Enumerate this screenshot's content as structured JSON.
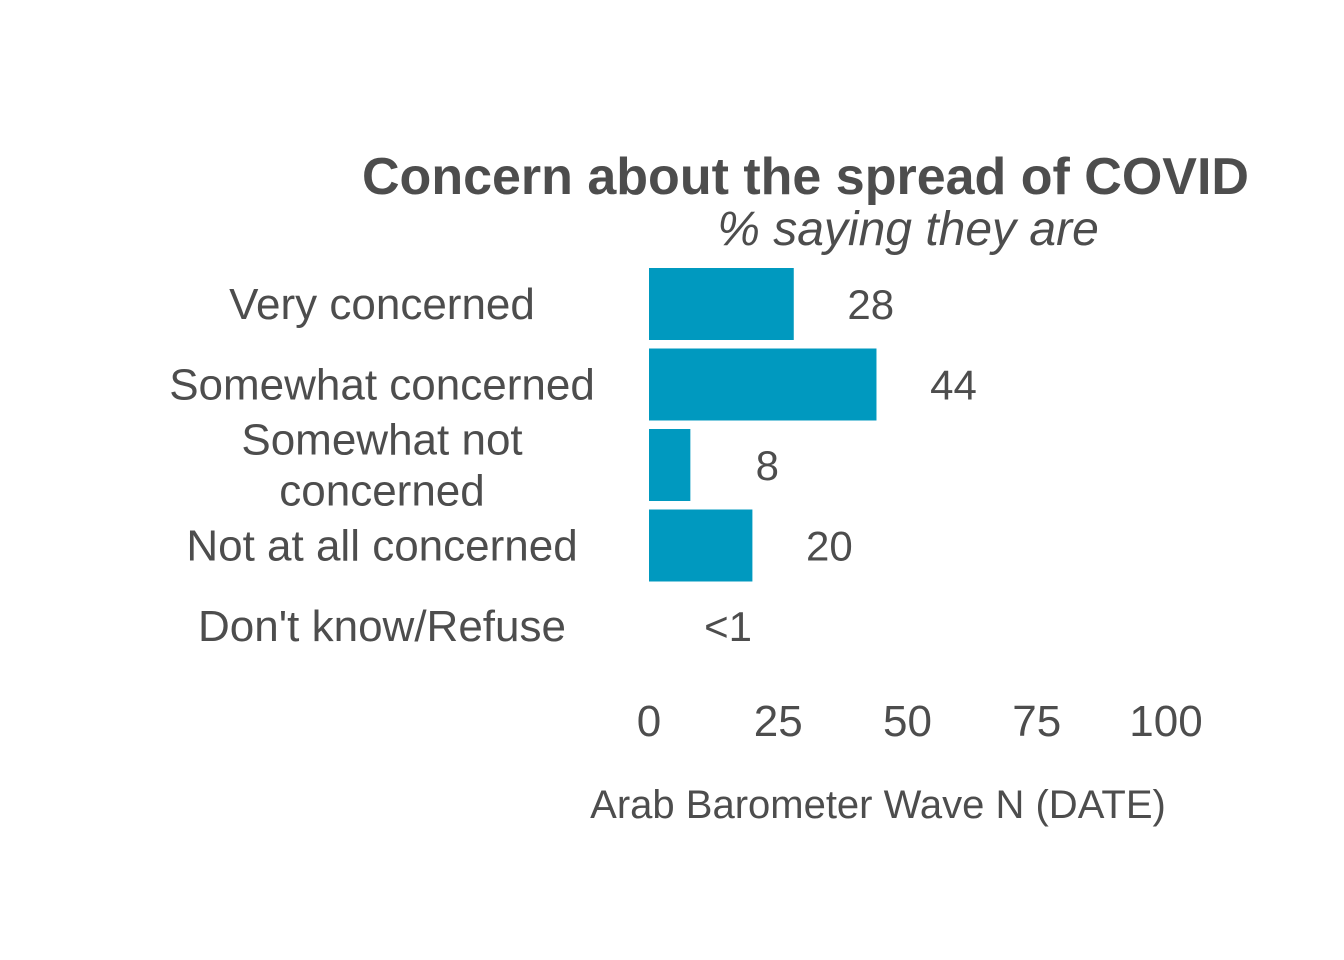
{
  "chart_data": {
    "type": "bar",
    "orientation": "horizontal",
    "title": "Concern about the spread of COVID",
    "subtitle": "% saying they are",
    "caption": "Arab Barometer Wave N (DATE)",
    "categories": [
      [
        "Very concerned"
      ],
      [
        "Somewhat concerned"
      ],
      [
        "Somewhat not",
        "concerned"
      ],
      [
        "Not at all concerned"
      ],
      [
        "Don't know/Refuse"
      ]
    ],
    "values": [
      28,
      44,
      8,
      20,
      0.4
    ],
    "value_labels": [
      "28",
      "44",
      "8",
      "20",
      "<1"
    ],
    "xlim": [
      0,
      100
    ],
    "xticks": [
      "0",
      "25",
      "50",
      "75",
      "100"
    ],
    "xtick_values": [
      0,
      25,
      50,
      75,
      100
    ],
    "bar_color": "#0099bf",
    "text_color": "#4d4d4d",
    "grid": false
  }
}
